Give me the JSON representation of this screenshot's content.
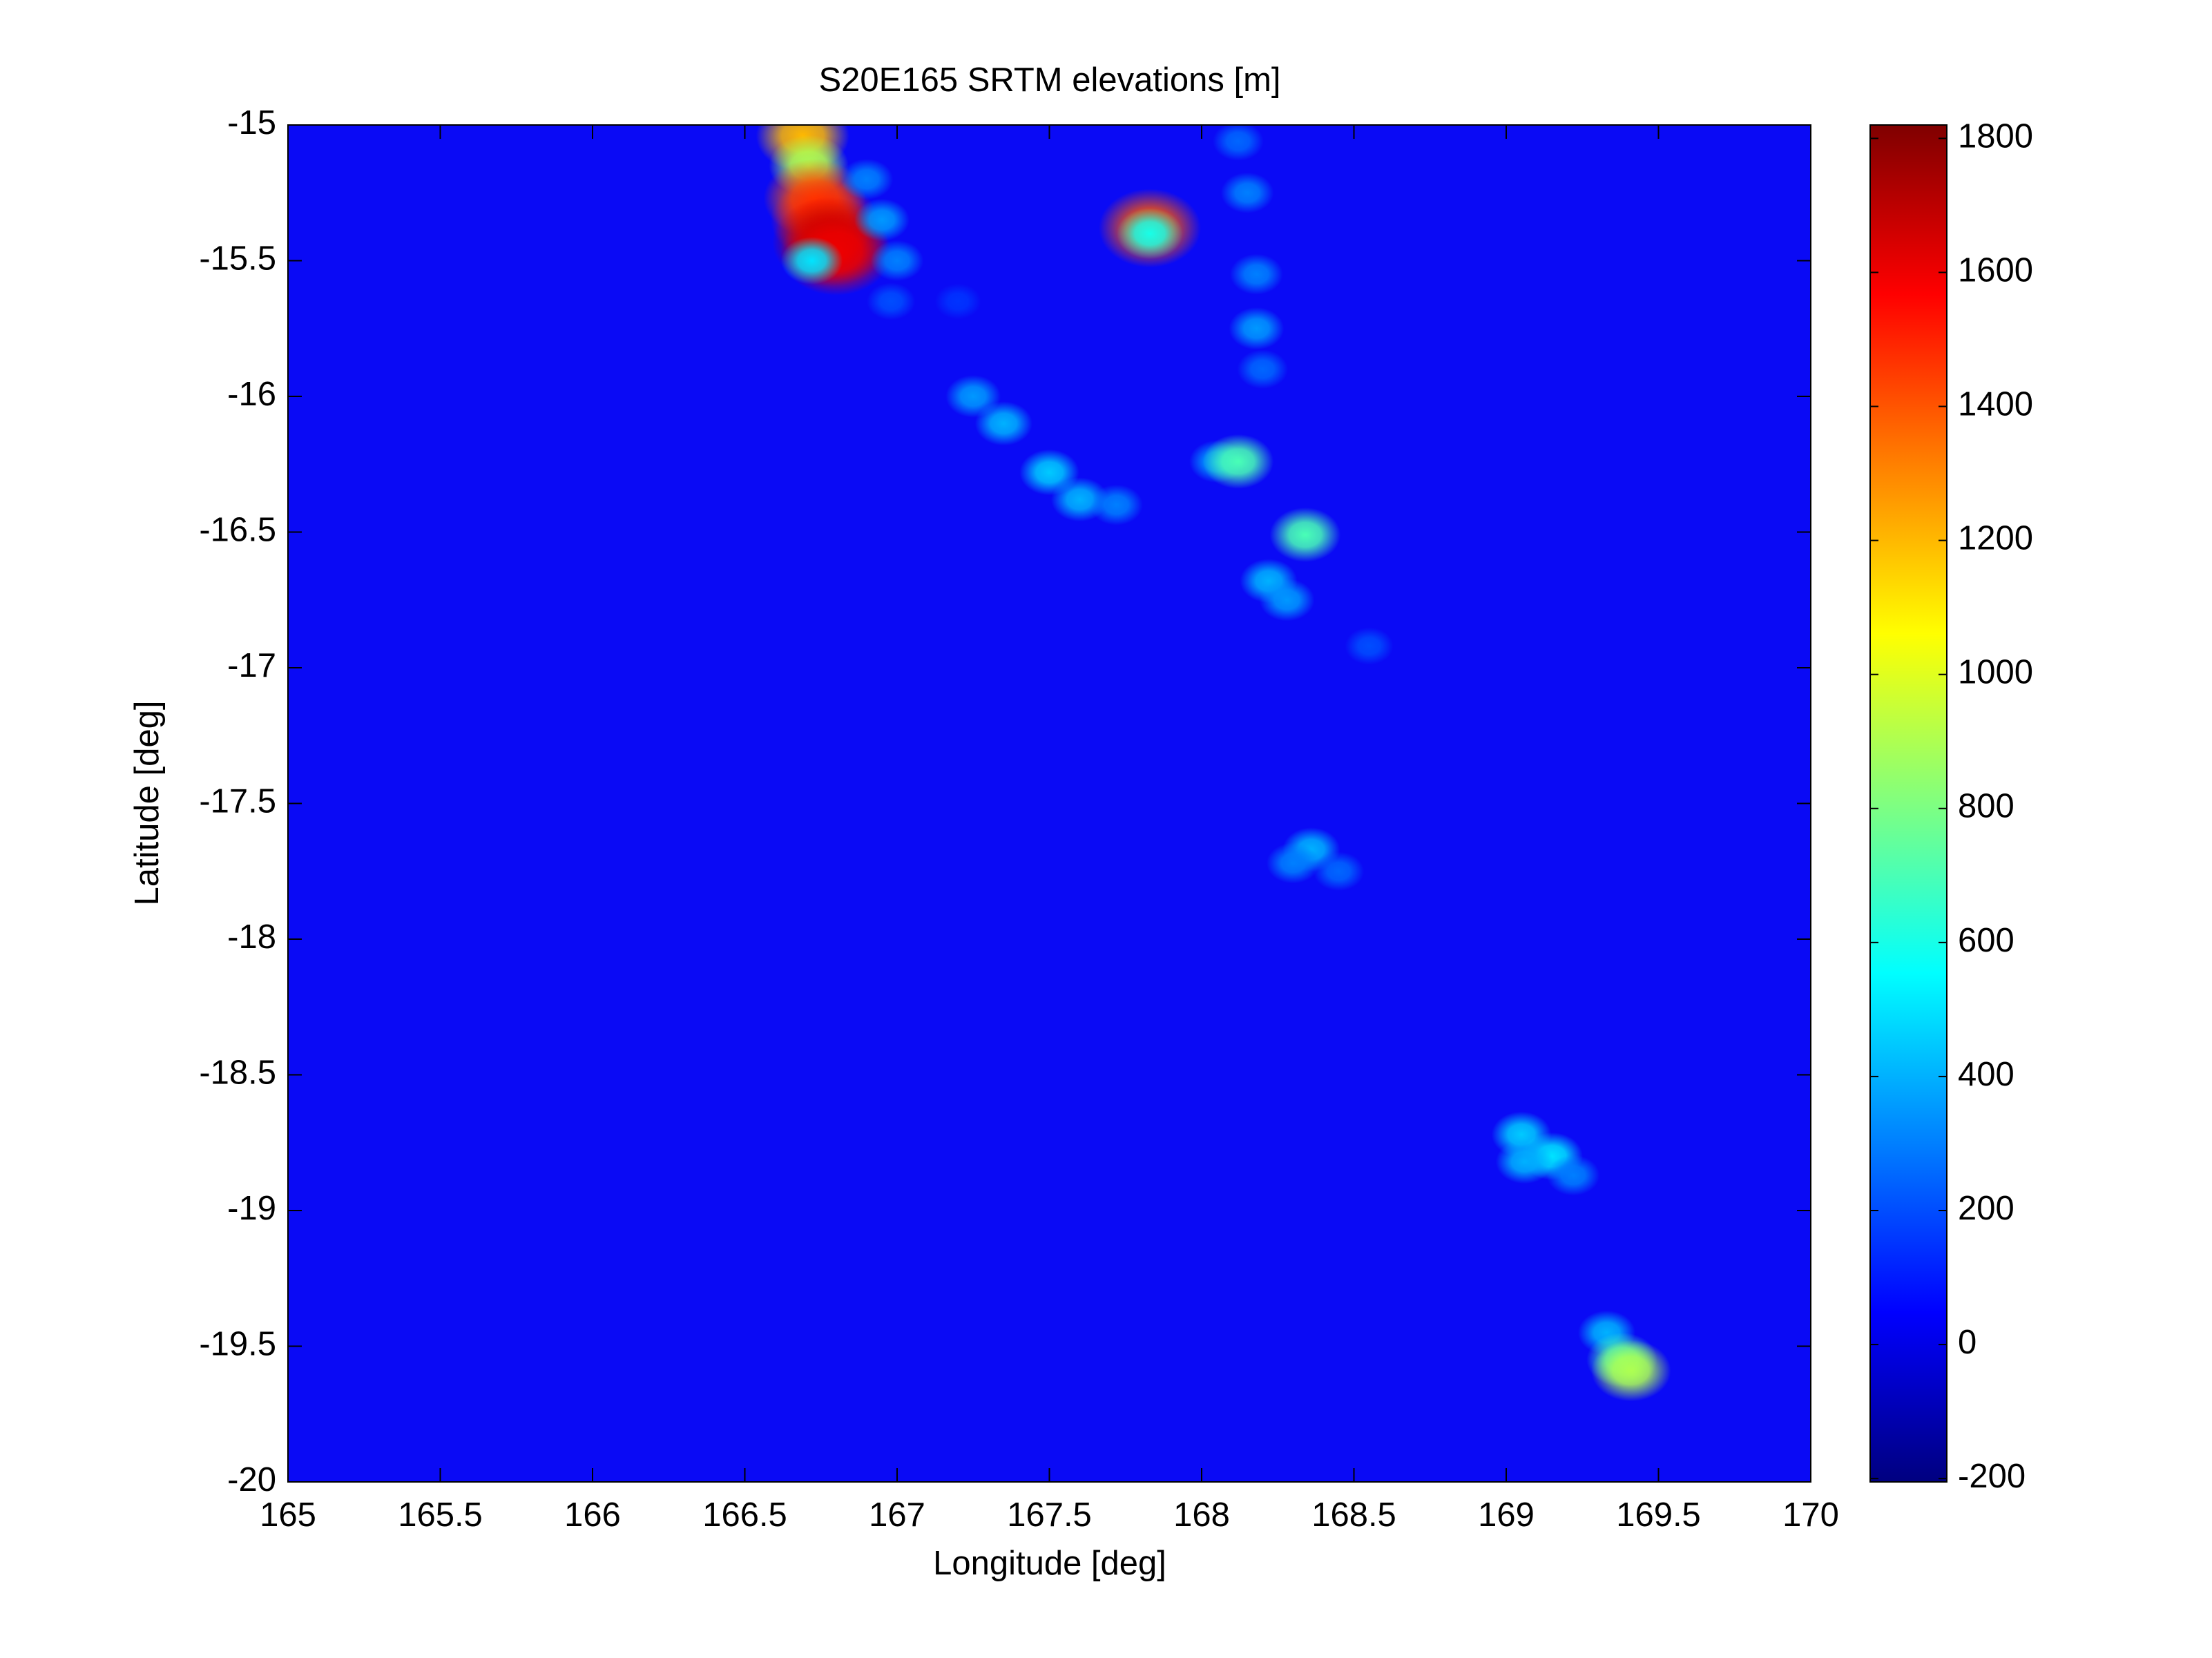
{
  "chart_data": {
    "type": "heatmap",
    "title": "S20E165 SRTM elevations [m]",
    "x_label": "Longitude [deg]",
    "y_label": "Latitude [deg]",
    "xlim": [
      165,
      170
    ],
    "ylim": [
      -20,
      -15
    ],
    "xticks": [
      165,
      165.5,
      166,
      166.5,
      167,
      167.5,
      168,
      168.5,
      169,
      169.5,
      170
    ],
    "yticks": [
      -15,
      -15.5,
      -16,
      -16.5,
      -17,
      -17.5,
      -18,
      -18.5,
      -19,
      -19.5,
      -20
    ],
    "clim": [
      -205,
      1820
    ],
    "cticks": [
      -200,
      0,
      200,
      400,
      600,
      800,
      1000,
      1200,
      1400,
      1600,
      1800
    ],
    "colormap": "jet",
    "background_color": "#0a0af5",
    "x": [
      166.69,
      166.71,
      166.73,
      166.76,
      166.78,
      166.8,
      166.72,
      166.9,
      166.95,
      167.0,
      166.98,
      167.2,
      167.83,
      167.83,
      168.12,
      168.15,
      168.18,
      168.18,
      168.2,
      167.25,
      167.35,
      167.5,
      167.6,
      167.72,
      168.05,
      168.12,
      168.34,
      168.22,
      168.28,
      168.55,
      168.36,
      168.3,
      168.45,
      169.05,
      169.15,
      169.22,
      169.06,
      169.33,
      169.38,
      169.41
    ],
    "y": [
      -15.04,
      -15.15,
      -15.27,
      -15.35,
      -15.43,
      -15.47,
      -15.5,
      -15.2,
      -15.35,
      -15.5,
      -15.65,
      -15.65,
      -15.38,
      -15.4,
      -15.06,
      -15.25,
      -15.55,
      -15.75,
      -15.9,
      -16.0,
      -16.1,
      -16.28,
      -16.38,
      -16.4,
      -16.24,
      -16.24,
      -16.51,
      -16.68,
      -16.75,
      -16.92,
      -17.67,
      -17.72,
      -17.75,
      -18.72,
      -18.8,
      -18.87,
      -18.82,
      -19.45,
      -19.55,
      -19.59
    ],
    "values": [
      1200,
      900,
      1400,
      1500,
      1700,
      1600,
      500,
      300,
      350,
      300,
      200,
      150,
      1400,
      600,
      250,
      300,
      300,
      350,
      250,
      350,
      400,
      450,
      400,
      300,
      350,
      700,
      700,
      400,
      350,
      200,
      400,
      300,
      250,
      450,
      500,
      300,
      400,
      400,
      700,
      900
    ]
  }
}
